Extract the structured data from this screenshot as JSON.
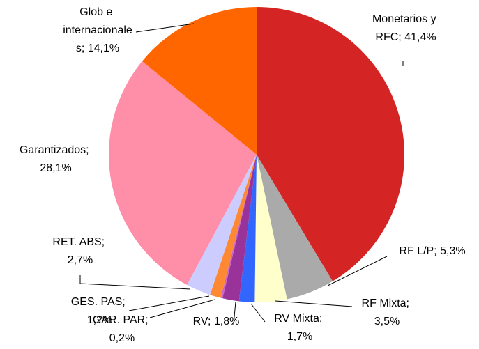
{
  "chart_data": {
    "type": "pie",
    "categories": [
      "Monetarios y RFC",
      "RF L/P",
      "RF Mixta",
      "RV Mixta",
      "RV",
      "GAR. PAR",
      "GES. PAS",
      "RET. ABS",
      "Garantizados",
      "Glob e internacionales"
    ],
    "values": [
      41.4,
      5.3,
      3.5,
      1.7,
      1.8,
      0.2,
      1.2,
      2.7,
      28.1,
      14.1
    ],
    "value_labels": [
      "Monetarios y RFC; 41,4%",
      "RF L/P; 5,3%",
      "RF Mixta; 3,5%",
      "RV Mixta; 1,7%",
      "RV; 1,8%",
      "GAR. PAR; 0,2%",
      "GES. PAS; 1,2%",
      "RET. ABS; 2,7%",
      "Garantizados; 28,1%",
      "Glob e internacionales; 14,1%"
    ],
    "colors": [
      "#d42424",
      "#aaaaaa",
      "#ffffcc",
      "#3366ff",
      "#993399",
      "#cc66cc",
      "#ff8833",
      "#ccccff",
      "#ff8fa8",
      "#ff6600"
    ]
  }
}
